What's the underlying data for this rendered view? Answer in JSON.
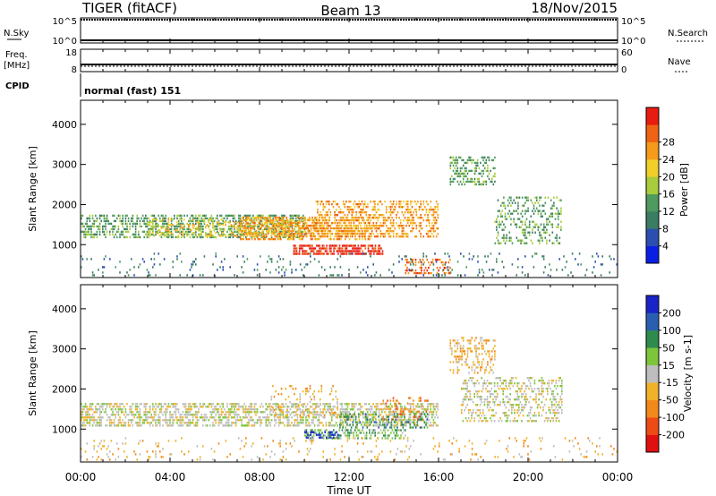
{
  "header": {
    "title_left": "TIGER (fitACF)",
    "title_center": "Beam 13",
    "title_right": "18/Nov/2015"
  },
  "summary": {
    "nsky_label": "N.Sky",
    "nsky_ticks": [
      "10^5",
      "10^0"
    ],
    "nsearch_label": "N.Search",
    "nsearch_ticks": [
      "10^5",
      "10^0"
    ],
    "freq_label": "Freq.",
    "freq_unit": "[MHz]",
    "freq_ticks": [
      "18",
      "8"
    ],
    "nave_label": "Nave",
    "nave_ticks": [
      "60",
      "0"
    ],
    "cpid_label": "CPID",
    "cpid_text": "normal (fast) 151"
  },
  "xaxis": {
    "label": "Time UT",
    "ticks": [
      "00:00",
      "04:00",
      "08:00",
      "12:00",
      "16:00",
      "20:00",
      "00:00"
    ],
    "range_hours": [
      0,
      24
    ]
  },
  "yaxis": {
    "label": "Slant Range [km]",
    "ticks": [
      1000,
      2000,
      3000,
      4000
    ],
    "range_km": [
      180,
      4600
    ]
  },
  "colors": {
    "power": [
      "#0a1fe6",
      "#2b4fb0",
      "#3a7d62",
      "#4f9a5e",
      "#a8cc3c",
      "#f2ce2a",
      "#f59a1a",
      "#ef6414",
      "#e81c10"
    ],
    "velocity": [
      "#1a23c8",
      "#2a5fb0",
      "#2f8a4e",
      "#7dc63c",
      "#bebebe",
      "#f0b22a",
      "#f28a1a",
      "#ee4a14",
      "#e01010"
    ]
  },
  "chart_data": [
    {
      "type": "heatmap",
      "title": "Power",
      "colorbar_label": "Power [dB]",
      "colorbar_ticks": [
        "4",
        "8",
        "12",
        "16",
        "20",
        "24",
        "28"
      ],
      "x_range_hours": [
        0,
        24
      ],
      "y_range_km": [
        180,
        4600
      ],
      "scatter_regions": [
        {
          "t_start": 0.0,
          "t_end": 10.0,
          "r_start": 1150,
          "r_end": 1750,
          "level": 3,
          "density": 0.55
        },
        {
          "t_start": 3.0,
          "t_end": 10.5,
          "r_start": 1200,
          "r_end": 1650,
          "level": 5,
          "density": 0.35
        },
        {
          "t_start": 7.0,
          "t_end": 13.0,
          "r_start": 1100,
          "r_end": 1700,
          "level": 6,
          "density": 0.55
        },
        {
          "t_start": 9.5,
          "t_end": 13.5,
          "r_start": 750,
          "r_end": 1000,
          "level": 8,
          "density": 0.7
        },
        {
          "t_start": 10.5,
          "t_end": 16.0,
          "r_start": 1200,
          "r_end": 2100,
          "level": 6,
          "density": 0.45
        },
        {
          "t_start": 14.5,
          "t_end": 16.5,
          "r_start": 300,
          "r_end": 650,
          "level": 7,
          "density": 0.4
        },
        {
          "t_start": 16.5,
          "t_end": 18.5,
          "r_start": 2500,
          "r_end": 3200,
          "level": 3,
          "density": 0.45
        },
        {
          "t_start": 18.5,
          "t_end": 21.5,
          "r_start": 1000,
          "r_end": 2200,
          "level": 3,
          "density": 0.3
        },
        {
          "t_start": 0.0,
          "t_end": 24.0,
          "r_start": 200,
          "r_end": 800,
          "level": 2,
          "density": 0.08
        }
      ]
    },
    {
      "type": "heatmap",
      "title": "Velocity",
      "colorbar_label": "Velocity [m s-1]",
      "colorbar_ticks": [
        "200",
        "100",
        "50",
        "15",
        "-15",
        "-50",
        "-100",
        "-200"
      ],
      "x_range_hours": [
        0,
        24
      ],
      "y_range_km": [
        180,
        4600
      ],
      "scatter_regions": [
        {
          "t_start": 0.0,
          "t_end": 16.0,
          "r_start": 1100,
          "r_end": 1650,
          "level": 4,
          "density": 0.55
        },
        {
          "t_start": 8.5,
          "t_end": 11.5,
          "r_start": 1300,
          "r_end": 2100,
          "level": 5,
          "density": 0.2
        },
        {
          "t_start": 10.0,
          "t_end": 14.5,
          "r_start": 750,
          "r_end": 1000,
          "level": 3,
          "density": 0.45
        },
        {
          "t_start": 10.0,
          "t_end": 11.5,
          "r_start": 800,
          "r_end": 950,
          "level": 0,
          "density": 0.5
        },
        {
          "t_start": 11.5,
          "t_end": 15.5,
          "r_start": 1050,
          "r_end": 1400,
          "level": 2,
          "density": 0.35
        },
        {
          "t_start": 13.5,
          "t_end": 15.5,
          "r_start": 1200,
          "r_end": 1800,
          "level": 6,
          "density": 0.2
        },
        {
          "t_start": 16.5,
          "t_end": 18.5,
          "r_start": 2400,
          "r_end": 3300,
          "level": 5,
          "density": 0.35
        },
        {
          "t_start": 17.0,
          "t_end": 21.5,
          "r_start": 1200,
          "r_end": 2300,
          "level": 4,
          "density": 0.35
        },
        {
          "t_start": 0.0,
          "t_end": 24.0,
          "r_start": 200,
          "r_end": 800,
          "level": 5,
          "density": 0.08
        }
      ]
    }
  ]
}
